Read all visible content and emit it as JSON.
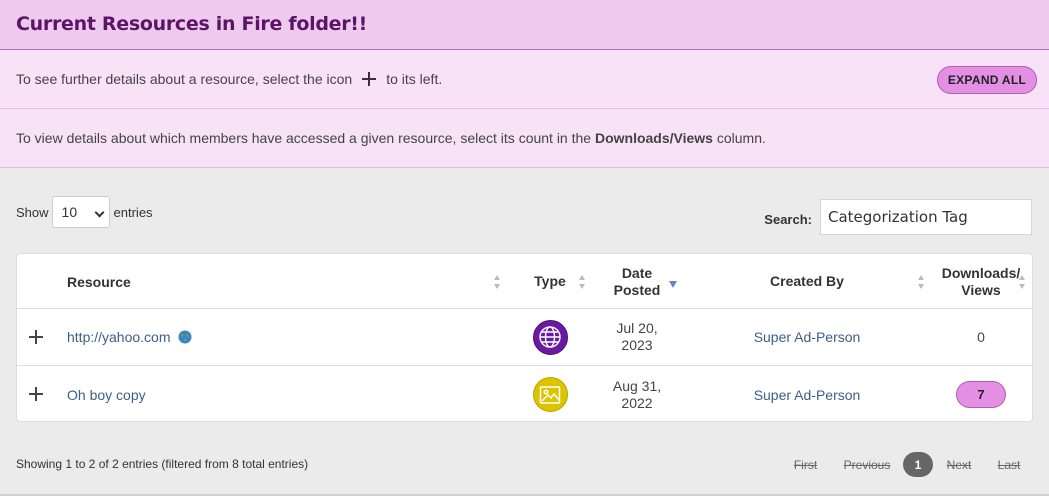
{
  "header": {
    "title": "Current Resources in Fire folder!!"
  },
  "info": {
    "expand_text_before": "To see further details about a resource, select the icon",
    "expand_text_after": "to its left.",
    "expand_button": "EXPAND ALL",
    "access_text_before": "To view details about which members have accessed a given resource, select its count in the",
    "access_text_bold": "Downloads/Views",
    "access_text_after": "column."
  },
  "controls": {
    "show_label": "Show",
    "page_length": "10",
    "entries_label": "entries",
    "search_label": "Search:",
    "search_value": "Categorization Tag"
  },
  "table": {
    "headers": {
      "resource": "Resource",
      "type": "Type",
      "date_line1": "Date",
      "date_line2": "Posted",
      "created_by": "Created By",
      "downloads_line1": "Downloads/",
      "downloads_line2": "Views"
    },
    "rows": [
      {
        "resource": "http://yahoo.com",
        "type_icon": "globe-icon",
        "date_line1": "Jul 20,",
        "date_line2": "2023",
        "created_by": "Super Ad-Person",
        "count": "0"
      },
      {
        "resource": "Oh boy copy",
        "type_icon": "image-icon",
        "date_line1": "Aug 31,",
        "date_line2": "2022",
        "created_by": "Super Ad-Person",
        "count": "7"
      }
    ]
  },
  "footer": {
    "summary": "Showing 1 to 2 of 2 entries (filtered from 8 total entries)",
    "first": "First",
    "previous": "Previous",
    "current_page": "1",
    "next": "Next",
    "last": "Last"
  },
  "colors": {
    "banner": "#eecbee",
    "info_bg": "#f8e2f8",
    "accent_pill": "#e38fe3",
    "link": "#3b5f8a",
    "web_icon_bg": "#6a1aa0",
    "image_icon_bg": "#dcc400"
  }
}
